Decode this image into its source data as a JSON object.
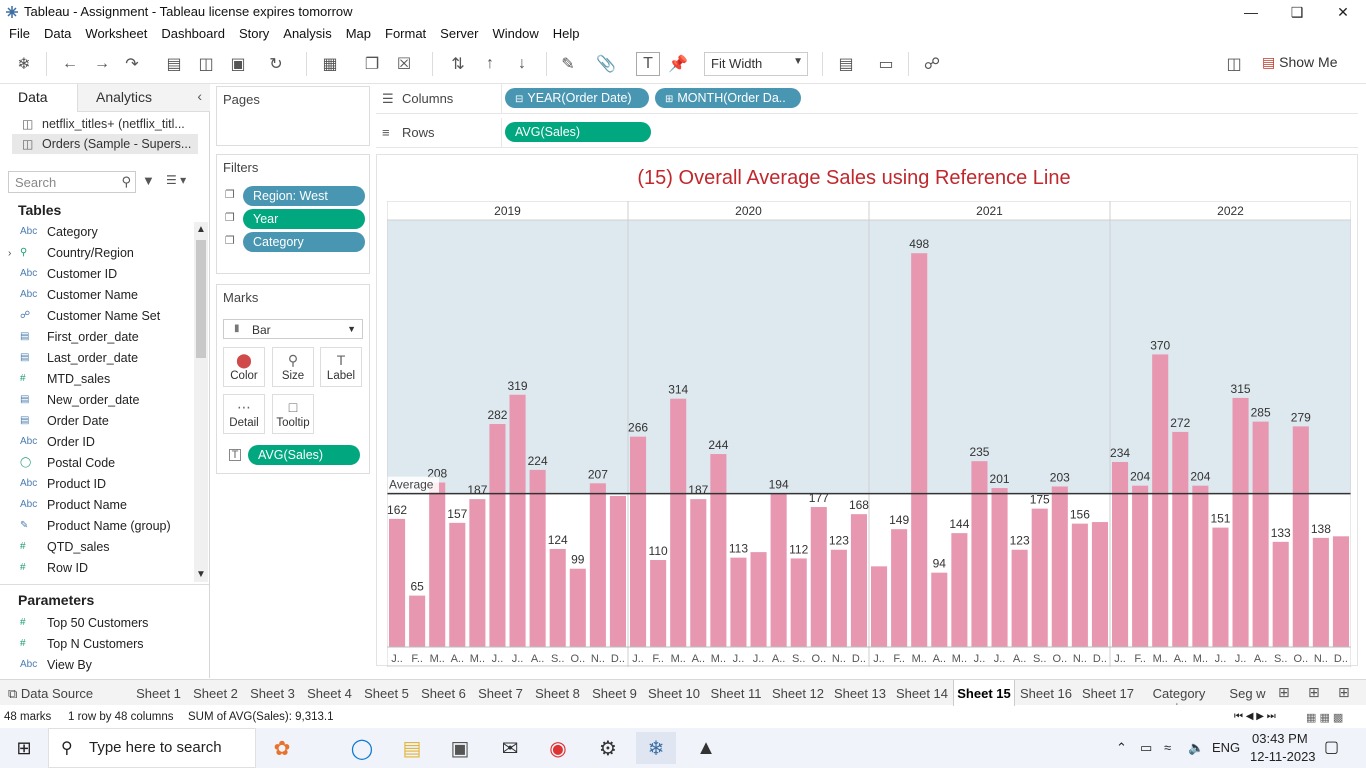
{
  "window": {
    "title": "Tableau - Assignment - Tableau license expires tomorrow"
  },
  "menu": [
    "File",
    "Data",
    "Worksheet",
    "Dashboard",
    "Story",
    "Analysis",
    "Map",
    "Format",
    "Server",
    "Window",
    "Help"
  ],
  "toolbar": {
    "fit": "Fit Width",
    "show_me": "Show Me"
  },
  "data_pane": {
    "tab_data": "Data",
    "tab_analytics": "Analytics",
    "sources": [
      "netflix_titles+ (netflix_titl...",
      "Orders (Sample - Supers..."
    ],
    "search_placeholder": "Search",
    "tables_label": "Tables",
    "fields": [
      {
        "type": "Abc",
        "name": "Category"
      },
      {
        "type": "geo",
        "name": "Country/Region"
      },
      {
        "type": "Abc",
        "name": "Customer ID"
      },
      {
        "type": "Abc",
        "name": "Customer Name"
      },
      {
        "type": "set",
        "name": "Customer Name Set"
      },
      {
        "type": "date",
        "name": "First_order_date"
      },
      {
        "type": "date",
        "name": "Last_order_date"
      },
      {
        "type": "#",
        "name": "MTD_sales"
      },
      {
        "type": "date",
        "name": "New_order_date"
      },
      {
        "type": "date",
        "name": "Order Date"
      },
      {
        "type": "Abc",
        "name": "Order ID"
      },
      {
        "type": "globe",
        "name": "Postal Code"
      },
      {
        "type": "Abc",
        "name": "Product ID"
      },
      {
        "type": "Abc",
        "name": "Product Name"
      },
      {
        "type": "clip",
        "name": "Product Name (group)"
      },
      {
        "type": "#",
        "name": "QTD_sales"
      },
      {
        "type": "#",
        "name": "Row ID"
      }
    ],
    "parameters_label": "Parameters",
    "parameters": [
      {
        "type": "#",
        "name": "Top 50 Customers"
      },
      {
        "type": "#",
        "name": "Top N Customers"
      },
      {
        "type": "Abc",
        "name": "View By"
      }
    ]
  },
  "pages_label": "Pages",
  "filters_label": "Filters",
  "filters": [
    "Region: West",
    "Year",
    "Category"
  ],
  "marks": {
    "label": "Marks",
    "type": "Bar",
    "buttons": [
      "Color",
      "Size",
      "Label",
      "Detail",
      "Tooltip"
    ],
    "pill": "AVG(Sales)"
  },
  "shelves": {
    "columns_label": "Columns",
    "rows_label": "Rows",
    "columns": [
      "YEAR(Order Date)",
      "MONTH(Order Da.."
    ],
    "rows": [
      "AVG(Sales)"
    ]
  },
  "chart_data": {
    "type": "bar",
    "title": "(15) Overall Average Sales using Reference Line",
    "years": [
      "2019",
      "2020",
      "2021",
      "2022"
    ],
    "month_labels": [
      [
        "J..",
        "F..",
        "M..",
        "A..",
        "M..",
        "J..",
        "J..",
        "A..",
        "S..",
        "O..",
        "N..",
        "D.."
      ],
      [
        "J..",
        "F..",
        "M..",
        "A..",
        "M..",
        "J..",
        "J..",
        "A..",
        "S..",
        "O..",
        "N..",
        "D.."
      ],
      [
        "J..",
        "F..",
        "M..",
        "A..",
        "M..",
        "J..",
        "J..",
        "A..",
        "S..",
        "O..",
        "N..",
        "D.."
      ],
      [
        "J..",
        "F..",
        "M..",
        "A..",
        "M..",
        "J..",
        "J..",
        "A..",
        "S..",
        "O..",
        "N..",
        "D.."
      ]
    ],
    "values": [
      [
        162,
        65,
        208,
        157,
        187,
        282,
        319,
        224,
        124,
        99,
        207,
        191
      ],
      [
        266,
        110,
        314,
        187,
        244,
        113,
        120,
        194,
        112,
        177,
        123,
        168
      ],
      [
        102,
        149,
        498,
        94,
        144,
        235,
        201,
        123,
        175,
        203,
        156,
        158
      ],
      [
        234,
        204,
        370,
        272,
        204,
        151,
        315,
        285,
        133,
        279,
        138,
        140
      ]
    ],
    "labels": [
      [
        "162",
        "65",
        "208",
        "157",
        "187",
        "282",
        "319",
        "224",
        "124",
        "99",
        "207",
        ""
      ],
      [
        "266",
        "110",
        "314",
        "187",
        "244",
        "113",
        "",
        "194",
        "112",
        "177",
        "123",
        "168"
      ],
      [
        "",
        "149",
        "498",
        "94",
        "144",
        "235",
        "201",
        "123",
        "175",
        "203",
        "156",
        ""
      ],
      [
        "234",
        "204",
        "370",
        "272",
        "204",
        "151",
        "315",
        "285",
        "133",
        "279",
        "138",
        ""
      ]
    ],
    "reference_line": {
      "label": "Average",
      "value": 194
    },
    "ylim": [
      0,
      540
    ],
    "bar_color": "#e897b0",
    "band_color": "#dde8ef"
  },
  "sheet_tabs": [
    "Data Source",
    "Sheet 1",
    "Sheet 2",
    "Sheet 3",
    "Sheet 4",
    "Sheet 5",
    "Sheet 6",
    "Sheet 7",
    "Sheet 8",
    "Sheet 9",
    "Sheet 10",
    "Sheet 11",
    "Sheet 12",
    "Sheet 13",
    "Sheet 14",
    "Sheet 15",
    "Sheet 16",
    "Sheet 17",
    "Category wise",
    "Seg w"
  ],
  "active_sheet": "Sheet 15",
  "status": {
    "marks": "48 marks",
    "dims": "1 row by 48 columns",
    "sum": "SUM of AVG(Sales): 9,313.1"
  },
  "taskbar": {
    "search": "Type here to search",
    "lang": "ENG",
    "time": "03:43 PM",
    "date": "12-11-2023"
  }
}
